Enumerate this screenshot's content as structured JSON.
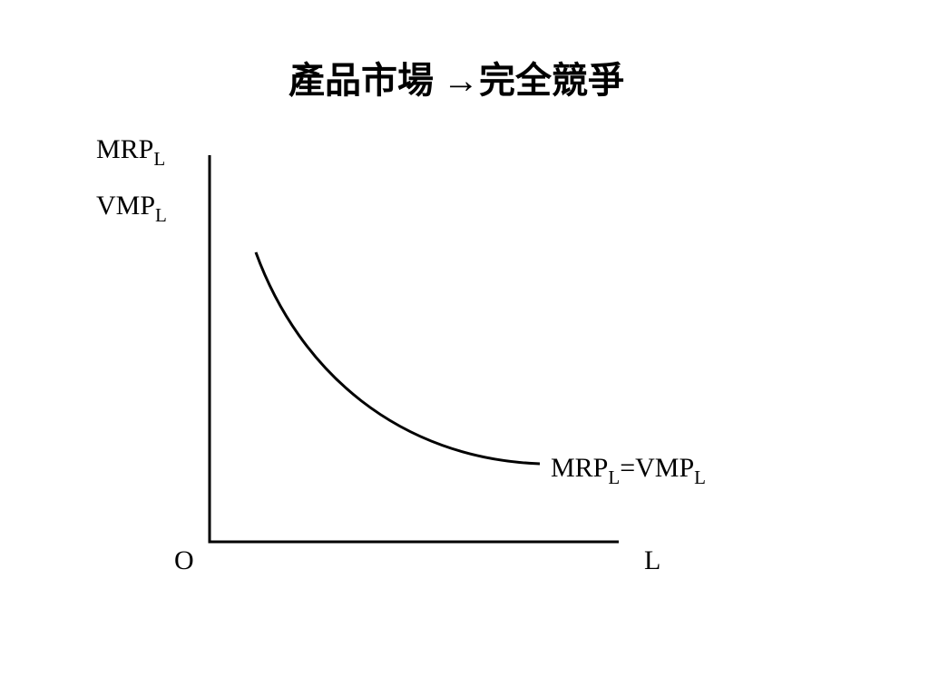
{
  "header": {
    "title": "產品市場 →完全競爭"
  },
  "y_axis_labels": [
    {
      "main": "MRP",
      "sub": "L"
    },
    {
      "main": "VMP",
      "sub": "L"
    }
  ],
  "curve_label": [
    "MRP",
    "L",
    "=VMP",
    "L"
  ],
  "origin_label": "O",
  "x_axis_label": "L"
}
